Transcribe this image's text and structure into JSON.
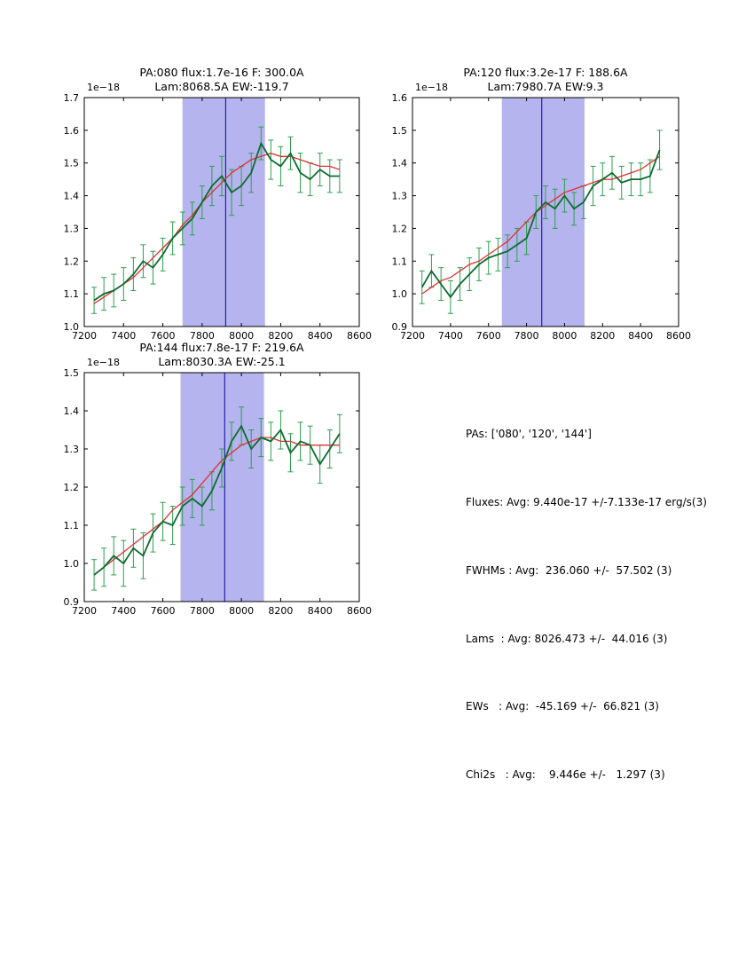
{
  "colors": {
    "data": "#0d6b2f",
    "err": "#2f9e4f",
    "fit": "#dd3333",
    "band": "#b5b4ee",
    "vline": "#2222aa",
    "axis": "#000000"
  },
  "stats": {
    "lines": [
      "PAs: ['080', '120', '144']",
      "Fluxes: Avg: 9.440e-17 +/-7.133e-17 erg/s(3)",
      "FWHMs : Avg:  236.060 +/-  57.502 (3)",
      "Lams  : Avg: 8026.473 +/-  44.016 (3)",
      "EWs   : Avg:  -45.169 +/-  66.821 (3)",
      "Chi2s   : Avg:    9.446e +/-   1.297 (3)"
    ]
  },
  "chart_data": [
    {
      "type": "line",
      "title_line1": "PA:080 flux:1.7e-16 F: 300.0A",
      "title_line2": "Lam:8068.5A EW:-119.7",
      "offset_label": "1e−18",
      "xlabel": "",
      "ylabel": "",
      "xlim": [
        7200,
        8600
      ],
      "ylim": [
        1.0,
        1.7
      ],
      "xticks": [
        7200,
        7400,
        7600,
        7800,
        8000,
        8200,
        8400,
        8600
      ],
      "yticks": [
        1.0,
        1.1,
        1.2,
        1.3,
        1.4,
        1.5,
        1.6,
        1.7
      ],
      "band": [
        7700,
        8120
      ],
      "vline": 7920,
      "legend": "off",
      "grid": "off",
      "x": [
        7250,
        7300,
        7350,
        7400,
        7450,
        7500,
        7550,
        7600,
        7650,
        7700,
        7750,
        7800,
        7850,
        7900,
        7950,
        8000,
        8050,
        8100,
        8150,
        8200,
        8250,
        8300,
        8350,
        8400,
        8450,
        8500
      ],
      "y": [
        1.08,
        1.1,
        1.11,
        1.13,
        1.16,
        1.2,
        1.18,
        1.22,
        1.27,
        1.3,
        1.33,
        1.38,
        1.43,
        1.46,
        1.41,
        1.43,
        1.47,
        1.56,
        1.51,
        1.49,
        1.53,
        1.47,
        1.45,
        1.48,
        1.46,
        1.46
      ],
      "yerr": [
        0.04,
        0.05,
        0.05,
        0.05,
        0.05,
        0.05,
        0.05,
        0.05,
        0.05,
        0.05,
        0.05,
        0.05,
        0.06,
        0.06,
        0.07,
        0.06,
        0.06,
        0.05,
        0.06,
        0.06,
        0.05,
        0.06,
        0.05,
        0.05,
        0.05,
        0.05
      ],
      "fit": [
        1.07,
        1.09,
        1.11,
        1.13,
        1.15,
        1.18,
        1.21,
        1.24,
        1.27,
        1.31,
        1.34,
        1.38,
        1.41,
        1.44,
        1.47,
        1.49,
        1.51,
        1.52,
        1.53,
        1.52,
        1.52,
        1.51,
        1.5,
        1.49,
        1.49,
        1.48
      ]
    },
    {
      "type": "line",
      "title_line1": "PA:120 flux:3.2e-17 F: 188.6A",
      "title_line2": "Lam:7980.7A EW:9.3",
      "offset_label": "1e−18",
      "xlabel": "",
      "ylabel": "",
      "xlim": [
        7200,
        8600
      ],
      "ylim": [
        0.9,
        1.6
      ],
      "xticks": [
        7200,
        7400,
        7600,
        7800,
        8000,
        8200,
        8400,
        8600
      ],
      "yticks": [
        0.9,
        1.0,
        1.1,
        1.2,
        1.3,
        1.4,
        1.5,
        1.6
      ],
      "band": [
        7670,
        8105
      ],
      "vline": 7880,
      "legend": "off",
      "grid": "off",
      "x": [
        7250,
        7300,
        7350,
        7400,
        7450,
        7500,
        7550,
        7600,
        7650,
        7700,
        7750,
        7800,
        7850,
        7900,
        7950,
        8000,
        8050,
        8100,
        8150,
        8200,
        8250,
        8300,
        8350,
        8400,
        8450,
        8500
      ],
      "y": [
        1.02,
        1.07,
        1.03,
        0.99,
        1.03,
        1.06,
        1.09,
        1.11,
        1.12,
        1.13,
        1.15,
        1.17,
        1.25,
        1.28,
        1.26,
        1.3,
        1.26,
        1.28,
        1.33,
        1.35,
        1.37,
        1.34,
        1.35,
        1.35,
        1.36,
        1.44
      ],
      "yerr": [
        0.05,
        0.05,
        0.05,
        0.05,
        0.05,
        0.05,
        0.05,
        0.05,
        0.05,
        0.05,
        0.05,
        0.05,
        0.05,
        0.05,
        0.06,
        0.05,
        0.05,
        0.05,
        0.06,
        0.05,
        0.05,
        0.05,
        0.05,
        0.05,
        0.05,
        0.06
      ],
      "fit": [
        1.0,
        1.02,
        1.04,
        1.05,
        1.07,
        1.09,
        1.1,
        1.12,
        1.14,
        1.16,
        1.19,
        1.22,
        1.25,
        1.27,
        1.29,
        1.31,
        1.32,
        1.33,
        1.34,
        1.35,
        1.35,
        1.36,
        1.37,
        1.38,
        1.4,
        1.42
      ]
    },
    {
      "type": "line",
      "title_line1": "PA:144 flux:7.8e-17 F: 219.6A",
      "title_line2": "Lam:8030.3A EW:-25.1",
      "offset_label": "1e−18",
      "xlabel": "",
      "ylabel": "",
      "xlim": [
        7200,
        8600
      ],
      "ylim": [
        0.9,
        1.5
      ],
      "xticks": [
        7200,
        7400,
        7600,
        7800,
        8000,
        8200,
        8400,
        8600
      ],
      "yticks": [
        0.9,
        1.0,
        1.1,
        1.2,
        1.3,
        1.4,
        1.5
      ],
      "band": [
        7690,
        8115
      ],
      "vline": 7915,
      "legend": "off",
      "grid": "off",
      "x": [
        7250,
        7300,
        7350,
        7400,
        7450,
        7500,
        7550,
        7600,
        7650,
        7700,
        7750,
        7800,
        7850,
        7900,
        7950,
        8000,
        8050,
        8100,
        8150,
        8200,
        8250,
        8300,
        8350,
        8400,
        8450,
        8500
      ],
      "y": [
        0.97,
        0.99,
        1.02,
        1.0,
        1.04,
        1.02,
        1.08,
        1.11,
        1.1,
        1.15,
        1.17,
        1.15,
        1.19,
        1.25,
        1.32,
        1.36,
        1.3,
        1.33,
        1.32,
        1.35,
        1.29,
        1.32,
        1.31,
        1.26,
        1.3,
        1.34
      ],
      "yerr": [
        0.04,
        0.05,
        0.05,
        0.06,
        0.05,
        0.06,
        0.05,
        0.05,
        0.05,
        0.05,
        0.05,
        0.05,
        0.05,
        0.05,
        0.05,
        0.05,
        0.05,
        0.05,
        0.05,
        0.05,
        0.05,
        0.05,
        0.05,
        0.05,
        0.05,
        0.05
      ],
      "fit": [
        0.97,
        0.99,
        1.01,
        1.03,
        1.05,
        1.07,
        1.09,
        1.11,
        1.14,
        1.16,
        1.18,
        1.21,
        1.24,
        1.27,
        1.29,
        1.31,
        1.32,
        1.33,
        1.33,
        1.32,
        1.32,
        1.31,
        1.31,
        1.31,
        1.31,
        1.31
      ]
    }
  ]
}
